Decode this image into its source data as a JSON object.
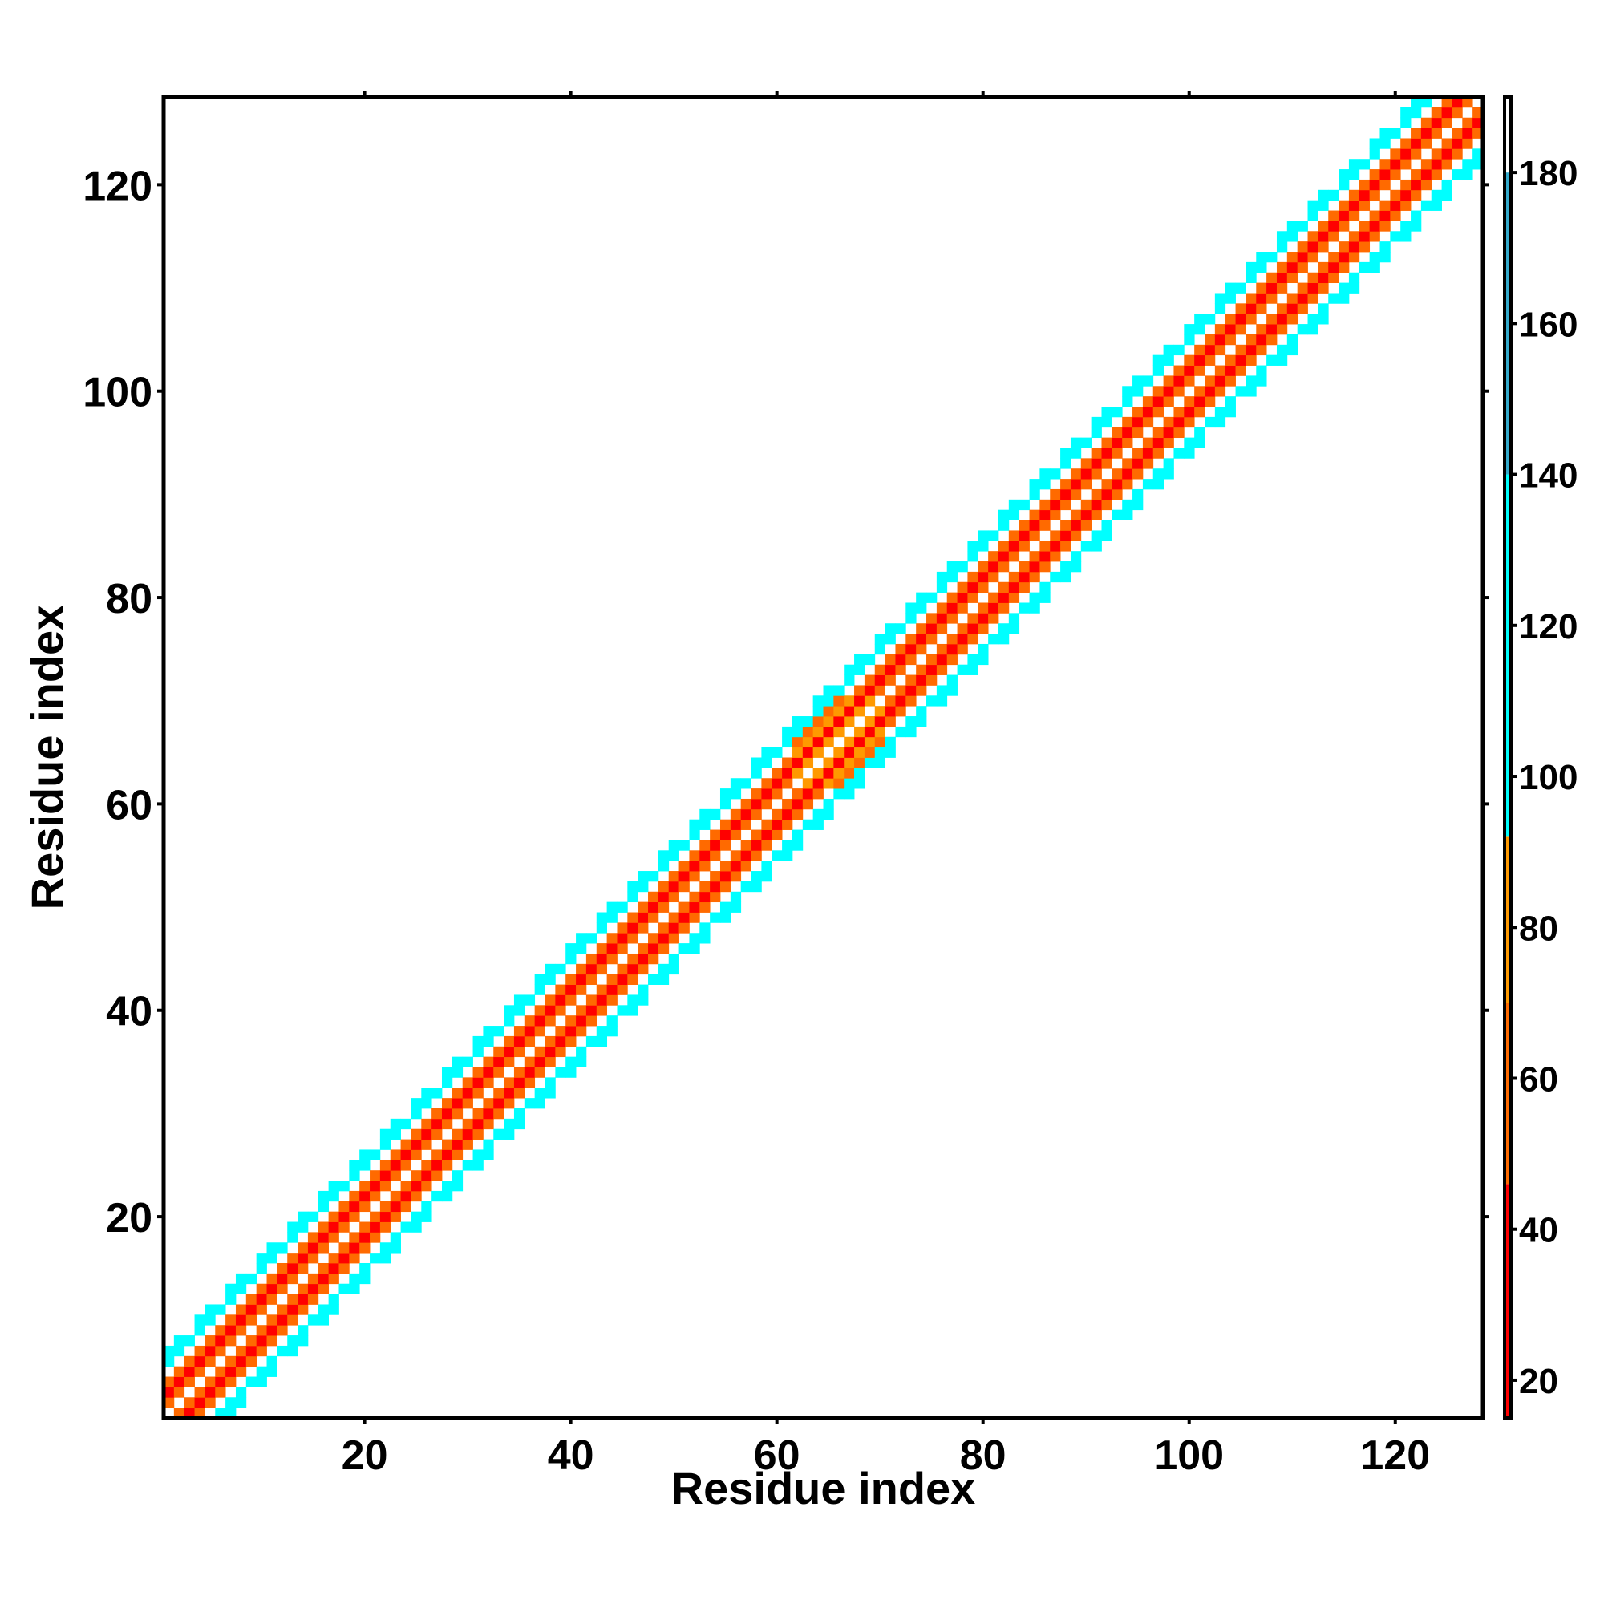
{
  "chart_data": {
    "type": "heatmap",
    "title": "",
    "xlabel": "Residue index",
    "ylabel": "Residue index",
    "xlim": [
      1,
      128
    ],
    "ylim": [
      1,
      128
    ],
    "x_ticks": [
      "20",
      "40",
      "60",
      "80",
      "100",
      "120"
    ],
    "y_ticks": [
      "20",
      "40",
      "60",
      "80",
      "100",
      "120"
    ],
    "grid": false,
    "description_of_values": "contact-map matrix; cell color encodes value on colorbar scale",
    "diagonal_band": {
      "start_residue": 1,
      "end_residue": 128,
      "half_width": 6
    },
    "colorbar": {
      "range": [
        15,
        190
      ],
      "tick_labels": [
        "20",
        "40",
        "60",
        "80",
        "100",
        "120",
        "140",
        "160",
        "180"
      ],
      "tick_values": [
        20,
        40,
        60,
        80,
        100,
        120,
        140,
        160,
        180
      ],
      "color_bands": [
        {
          "from": 15,
          "to": 46,
          "color": "#ff0000"
        },
        {
          "from": 46,
          "to": 70,
          "color": "#ff6a00"
        },
        {
          "from": 70,
          "to": 92,
          "color": "#ff9900"
        },
        {
          "from": 92,
          "to": 140,
          "color": "#00ffff"
        },
        {
          "from": 140,
          "to": 180,
          "color": "#33aacc"
        },
        {
          "from": 180,
          "to": 190,
          "color": "#ffffff"
        }
      ]
    },
    "colors": {
      "diagonal": "#ffffff",
      "near": "#ff0000",
      "mid": "#ff6a00",
      "orange": "#ff9900",
      "far": "#00ffff"
    }
  }
}
